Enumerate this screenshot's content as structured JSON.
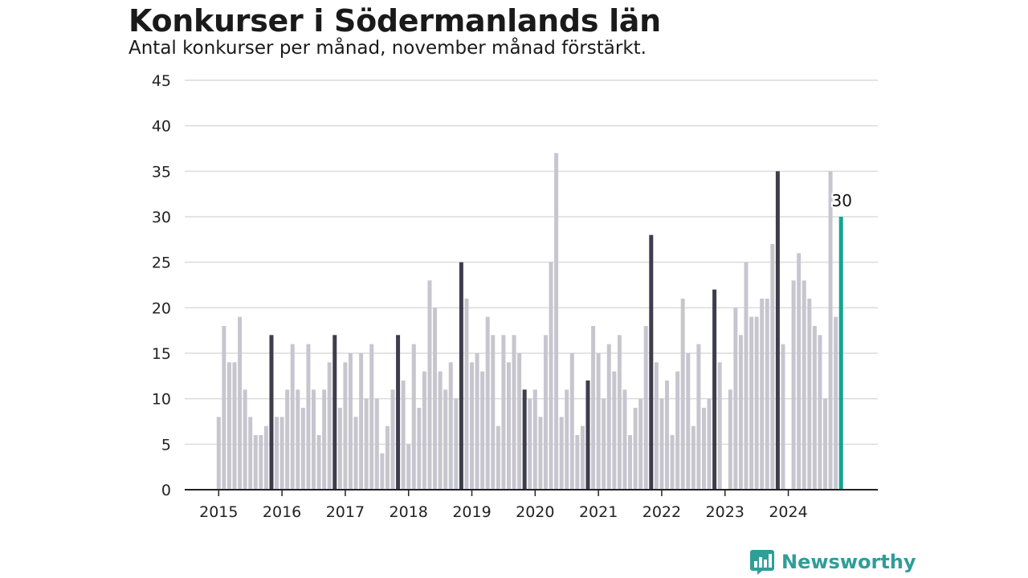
{
  "brand": {
    "name": "Newsworthy",
    "icon": "newsworthy-logo-icon",
    "color": "#2e9e98"
  },
  "chart_data": {
    "type": "bar",
    "title": "Konkurser i Södermanlands län",
    "subtitle": "Antal konkurser per månad, november månad förstärkt.",
    "ylim": [
      0,
      45
    ],
    "yticks": [
      0,
      5,
      10,
      15,
      20,
      25,
      30,
      35,
      40,
      45
    ],
    "xticks": [
      "2015",
      "2016",
      "2017",
      "2018",
      "2019",
      "2020",
      "2021",
      "2022",
      "2023",
      "2024"
    ],
    "grid": true,
    "highlight": "november",
    "colors": {
      "default": "#c7c6cf",
      "november": "#3e3d4c",
      "latest": "#12a594"
    },
    "annotation": {
      "text": "30",
      "target": "2024-11"
    },
    "series": [
      {
        "year": "2015",
        "values": [
          8,
          18,
          14,
          14,
          19,
          11,
          8,
          6,
          6,
          7,
          17,
          8
        ]
      },
      {
        "year": "2016",
        "values": [
          8,
          11,
          16,
          11,
          9,
          16,
          11,
          6,
          11,
          14,
          17,
          9
        ]
      },
      {
        "year": "2017",
        "values": [
          14,
          15,
          8,
          15,
          10,
          16,
          10,
          4,
          7,
          11,
          17,
          12
        ]
      },
      {
        "year": "2018",
        "values": [
          5,
          16,
          9,
          13,
          23,
          20,
          13,
          11,
          14,
          10,
          25,
          21
        ]
      },
      {
        "year": "2019",
        "values": [
          14,
          15,
          13,
          19,
          17,
          7,
          17,
          14,
          17,
          15,
          11,
          10
        ]
      },
      {
        "year": "2020",
        "values": [
          11,
          8,
          17,
          25,
          37,
          8,
          11,
          15,
          6,
          7,
          12,
          18
        ]
      },
      {
        "year": "2021",
        "values": [
          15,
          10,
          16,
          13,
          17,
          11,
          6,
          9,
          10,
          18,
          28,
          14
        ]
      },
      {
        "year": "2022",
        "values": [
          10,
          12,
          6,
          13,
          21,
          15,
          7,
          16,
          9,
          10,
          22,
          14
        ]
      },
      {
        "year": "2023",
        "values": [
          null,
          11,
          20,
          17,
          25,
          19,
          19,
          21,
          21,
          27,
          35,
          16
        ]
      },
      {
        "year": "2024",
        "values": [
          null,
          23,
          26,
          23,
          21,
          18,
          17,
          10,
          35,
          19,
          30
        ]
      }
    ]
  }
}
